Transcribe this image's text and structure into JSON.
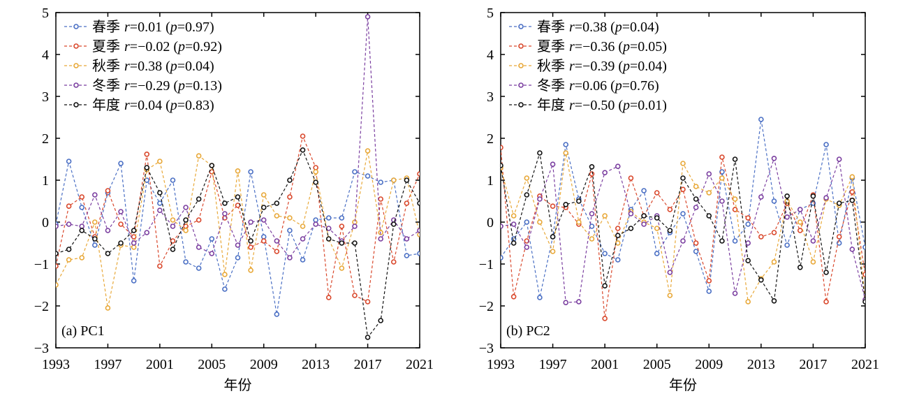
{
  "chart_data": [
    {
      "type": "line",
      "panel_label": "(a) PC1",
      "xlabel": "年份",
      "ylabel": "",
      "xlim": [
        1993,
        2021
      ],
      "ylim": [
        -3,
        5
      ],
      "xticks": [
        "1993",
        "1997",
        "2001",
        "2005",
        "2009",
        "2013",
        "2017",
        "2021"
      ],
      "yticks": [
        "−3",
        "−2",
        "−1",
        "0",
        "1",
        "2",
        "3",
        "4",
        "5"
      ],
      "x": [
        1993,
        1994,
        1995,
        1996,
        1997,
        1998,
        1999,
        2000,
        2001,
        2002,
        2003,
        2004,
        2005,
        2006,
        2007,
        2008,
        2009,
        2010,
        2011,
        2012,
        2013,
        2014,
        2015,
        2016,
        2017,
        2018,
        2019,
        2020,
        2021
      ],
      "legend_position": "top-left",
      "series": [
        {
          "name": "春季",
          "stat_prefix": "r",
          "stat_value": "=0.01 (",
          "p_prefix": "p",
          "p_value": "=0.97)",
          "color": "#4a6fc4",
          "values": [
            -0.05,
            1.45,
            0.35,
            -0.55,
            0.7,
            1.4,
            -1.4,
            1.0,
            0.45,
            1.0,
            -0.95,
            -1.1,
            -0.4,
            -1.6,
            -0.85,
            1.2,
            -0.35,
            -2.2,
            -0.2,
            -0.9,
            0.05,
            0.1,
            0.1,
            1.2,
            1.1,
            0.95,
            1.0,
            -0.8,
            -0.75
          ]
        },
        {
          "name": "夏季",
          "stat_prefix": "r",
          "stat_value": "=−0.02 (",
          "p_prefix": "p",
          "p_value": "=0.92)",
          "color": "#d9472b",
          "values": [
            -1.05,
            0.38,
            0.6,
            -0.35,
            0.75,
            -0.05,
            -0.35,
            1.62,
            -1.05,
            -0.45,
            -0.1,
            0.05,
            1.2,
            0.1,
            0.4,
            -0.6,
            -0.45,
            -0.7,
            0.6,
            2.05,
            1.3,
            -1.8,
            -0.1,
            -1.75,
            -1.9,
            0.55,
            -0.95,
            0.45,
            1.15
          ]
        },
        {
          "name": "秋季",
          "stat_prefix": "r",
          "stat_value": "=0.38 (",
          "p_prefix": "p",
          "p_value": "=0.04)",
          "color": "#e8a838",
          "values": [
            -1.5,
            -0.9,
            -0.85,
            0.0,
            -2.05,
            -0.55,
            -0.6,
            1.25,
            1.45,
            0.05,
            -0.2,
            1.58,
            1.35,
            -1.25,
            1.22,
            -1.15,
            0.65,
            0.15,
            0.1,
            -0.1,
            1.2,
            -0.4,
            -1.1,
            0.0,
            1.7,
            -0.25,
            1.0,
            1.05,
            -0.3
          ]
        },
        {
          "name": "冬季",
          "stat_prefix": "r",
          "stat_value": "=−0.29 (",
          "p_prefix": "p",
          "p_value": "=0.13)",
          "color": "#7b3fa0",
          "values": [
            -0.1,
            -0.05,
            -0.1,
            0.65,
            -0.2,
            0.25,
            -0.5,
            -0.25,
            0.28,
            -0.1,
            0.35,
            -0.6,
            -0.75,
            0.2,
            -0.55,
            0.0,
            0.05,
            -0.45,
            -0.85,
            -0.4,
            -0.05,
            -0.15,
            -0.45,
            -0.1,
            4.9,
            -0.4,
            0.05,
            -0.4,
            -0.2
          ]
        },
        {
          "name": "年度",
          "stat_prefix": "r",
          "stat_value": "=0.04 (",
          "p_prefix": "p",
          "p_value": "=0.83)",
          "color": "#111111",
          "values": [
            -0.75,
            -0.65,
            -0.2,
            -0.4,
            -0.75,
            -0.5,
            -0.2,
            1.3,
            0.7,
            -0.65,
            0.05,
            0.55,
            1.35,
            0.45,
            0.6,
            -0.45,
            0.35,
            0.45,
            1.0,
            1.72,
            0.95,
            -0.4,
            -0.5,
            -0.5,
            -2.75,
            -2.35,
            -0.05,
            1.0,
            0.45
          ]
        }
      ]
    },
    {
      "type": "line",
      "panel_label": "(b) PC2",
      "xlabel": "年份",
      "ylabel": "",
      "xlim": [
        1993,
        2021
      ],
      "ylim": [
        -3,
        5
      ],
      "xticks": [
        "1993",
        "1997",
        "2001",
        "2005",
        "2009",
        "2013",
        "2017",
        "2021"
      ],
      "yticks": [
        "−3",
        "−2",
        "−1",
        "0",
        "1",
        "2",
        "3",
        "4",
        "5"
      ],
      "x": [
        1993,
        1994,
        1995,
        1996,
        1997,
        1998,
        1999,
        2000,
        2001,
        2002,
        2003,
        2004,
        2005,
        2006,
        2007,
        2008,
        2009,
        2010,
        2011,
        2012,
        2013,
        2014,
        2015,
        2016,
        2017,
        2018,
        2019,
        2020,
        2021
      ],
      "legend_position": "top-left",
      "series": [
        {
          "name": "春季",
          "stat_prefix": "r",
          "stat_value": "=0.38 (",
          "p_prefix": "p",
          "p_value": "=0.04)",
          "color": "#4a6fc4",
          "values": [
            -0.85,
            -0.4,
            0.0,
            -1.8,
            -0.35,
            1.85,
            0.55,
            -0.1,
            -0.75,
            -0.9,
            0.3,
            0.75,
            -0.75,
            -0.25,
            0.2,
            -0.7,
            -1.65,
            1.2,
            -0.45,
            -0.05,
            2.45,
            0.5,
            -0.55,
            0.3,
            0.45,
            1.85,
            -0.5,
            1.05,
            -0.6
          ]
        },
        {
          "name": "夏季",
          "stat_prefix": "r",
          "stat_value": "=−0.36 (",
          "p_prefix": "p",
          "p_value": "=0.05)",
          "color": "#d9472b",
          "values": [
            1.78,
            -1.78,
            -0.45,
            0.62,
            0.38,
            0.35,
            -0.05,
            1.15,
            -2.3,
            -0.15,
            1.05,
            0.15,
            0.7,
            0.3,
            0.78,
            -0.5,
            -1.4,
            1.55,
            0.3,
            0.1,
            -0.35,
            -0.25,
            0.45,
            -0.2,
            0.65,
            -1.9,
            -0.35,
            0.72,
            -1.25
          ]
        },
        {
          "name": "秋季",
          "stat_prefix": "r",
          "stat_value": "=−0.39 (",
          "p_prefix": "p",
          "p_value": "=0.04)",
          "color": "#e8a838",
          "values": [
            1.3,
            0.15,
            1.05,
            0.0,
            -0.7,
            1.65,
            0.0,
            -0.4,
            0.15,
            -0.5,
            0.25,
            0.0,
            -0.15,
            -1.75,
            1.4,
            0.85,
            0.7,
            1.05,
            0.55,
            -1.9,
            -1.35,
            -0.95,
            0.5,
            0.0,
            -0.95,
            0.55,
            0.4,
            1.08,
            -1.85
          ]
        },
        {
          "name": "冬季",
          "stat_prefix": "r",
          "stat_value": "=0.06 (",
          "p_prefix": "p",
          "p_value": "=0.76)",
          "color": "#7b3fa0",
          "values": [
            -0.1,
            -0.05,
            -0.6,
            0.55,
            1.38,
            -1.92,
            -1.9,
            0.2,
            1.18,
            1.33,
            0.2,
            -0.05,
            0.15,
            -1.2,
            -0.45,
            0.35,
            1.15,
            0.5,
            -1.7,
            -0.5,
            0.6,
            1.52,
            0.12,
            0.3,
            -0.45,
            0.58,
            1.5,
            -0.65,
            -1.85
          ]
        },
        {
          "name": "年度",
          "stat_prefix": "r",
          "stat_value": "=−0.50 (",
          "p_prefix": "p",
          "p_value": "=0.01)",
          "color": "#111111",
          "values": [
            1.35,
            -0.5,
            0.65,
            1.65,
            -0.35,
            0.42,
            0.5,
            1.32,
            -1.52,
            -0.32,
            -0.15,
            0.15,
            0.1,
            -0.2,
            1.05,
            0.55,
            0.15,
            -0.45,
            1.5,
            -0.92,
            -1.38,
            -1.88,
            0.62,
            -1.08,
            0.62,
            -1.2,
            0.45,
            0.52,
            -1.9
          ]
        }
      ]
    }
  ]
}
